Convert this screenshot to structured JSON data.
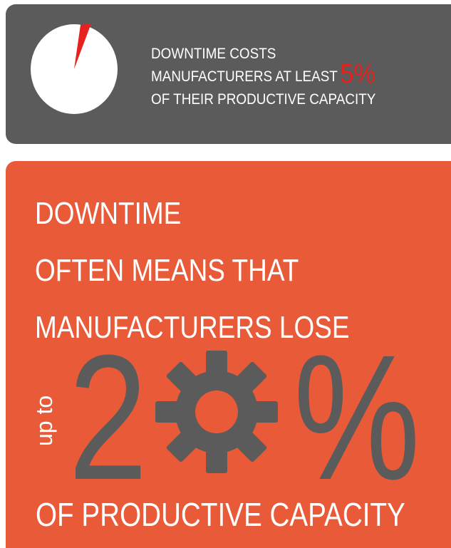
{
  "top_card": {
    "text_line1": "DOWNTIME COSTS",
    "text_line2": "MANUFACTURERS AT LEAST",
    "percent": "5%",
    "text_line3": "OF THEIR PRODUCTIVE CAPACITY",
    "pie_fraction": 0.05,
    "pie_color": "#ffffff",
    "slice_color": "#e5221d"
  },
  "main_card": {
    "headline_line1": "DOWNTIME",
    "headline_line2": "OFTEN MEANS THAT",
    "headline_line3": "MANUFACTURERS LOSE",
    "up_to": "up to",
    "big_digit": "2",
    "big_percent": "%",
    "bottom": "OF PRODUCTIVE CAPACITY"
  },
  "colors": {
    "dark_panel": "#5b5b5b",
    "orange_panel": "#e95a38",
    "accent_red": "#e5221d",
    "figure_gray": "#5b5b5b"
  }
}
